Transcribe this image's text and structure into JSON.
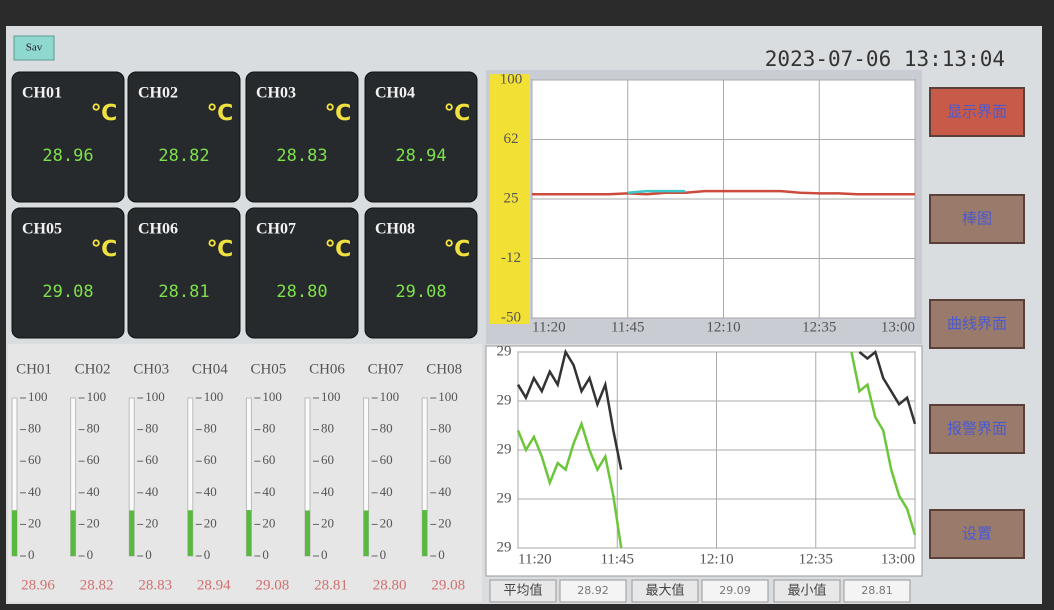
{
  "header": {
    "badge": "Sav",
    "datetime": "2023-07-06 13:13:04"
  },
  "channels": [
    {
      "name": "CH01",
      "unit": "℃",
      "value": "28.96"
    },
    {
      "name": "CH02",
      "unit": "℃",
      "value": "28.82"
    },
    {
      "name": "CH03",
      "unit": "℃",
      "value": "28.83"
    },
    {
      "name": "CH04",
      "unit": "℃",
      "value": "28.94"
    },
    {
      "name": "CH05",
      "unit": "℃",
      "value": "29.08"
    },
    {
      "name": "CH06",
      "unit": "℃",
      "value": "28.81"
    },
    {
      "name": "CH07",
      "unit": "℃",
      "value": "28.80"
    },
    {
      "name": "CH08",
      "unit": "℃",
      "value": "29.08"
    }
  ],
  "gauges": {
    "lim": [
      0,
      100
    ],
    "ticks": [
      100,
      80,
      60,
      40,
      20,
      0
    ]
  },
  "chart_data": [
    {
      "type": "line",
      "x": [
        "11:20",
        "11:25",
        "11:30",
        "11:35",
        "11:40",
        "11:45",
        "11:50",
        "11:55",
        "12:00",
        "12:05",
        "12:10",
        "12:15",
        "12:20",
        "12:25",
        "12:30",
        "12:35",
        "12:40",
        "12:45",
        "12:50",
        "12:55",
        "13:00"
      ],
      "series": [
        {
          "color": "#cc4b3c",
          "values": [
            28,
            28,
            28,
            28,
            28,
            28.5,
            28,
            29,
            29,
            30,
            30,
            30,
            30,
            30,
            29,
            28.5,
            28.5,
            28,
            28,
            28,
            28
          ]
        },
        {
          "color": "#3cc8c8",
          "values": [
            null,
            null,
            null,
            null,
            null,
            29,
            30,
            30,
            30,
            null,
            null,
            null,
            null,
            null,
            null,
            null,
            null,
            null,
            null,
            null,
            null
          ]
        }
      ],
      "xlim": [
        "11:20",
        "13:00"
      ],
      "xticks": [
        "11:20",
        "11:45",
        "12:10",
        "12:35",
        "13:00"
      ],
      "ylim": [
        -50,
        100
      ],
      "yticks": [
        100,
        {
          "value": 62.5,
          "label": "62"
        },
        25,
        {
          "value": -12.5,
          "label": "-12"
        },
        -50
      ],
      "grid": true
    },
    {
      "type": "line",
      "x": [
        "11:20",
        "11:22",
        "11:24",
        "11:26",
        "11:28",
        "11:30",
        "11:32",
        "11:34",
        "11:36",
        "11:38",
        "11:40",
        "11:42",
        "11:44",
        "11:46",
        "12:00",
        "12:44",
        "12:46",
        "12:48",
        "12:50",
        "12:52",
        "12:54",
        "12:56",
        "12:58",
        "13:00"
      ],
      "series": [
        {
          "color": "#333333",
          "values": [
            29.05,
            29.03,
            29.06,
            29.04,
            29.07,
            29.05,
            29.1,
            29.08,
            29.04,
            29.06,
            29.02,
            29.05,
            28.98,
            28.92,
            null,
            null,
            29.1,
            29.09,
            29.1,
            29.06,
            29.04,
            29.02,
            29.03,
            28.99
          ]
        },
        {
          "color": "#6cc63a",
          "values": [
            28.98,
            28.95,
            28.97,
            28.94,
            28.9,
            28.93,
            28.92,
            28.96,
            28.99,
            28.95,
            28.92,
            28.94,
            28.88,
            28.8,
            null,
            29.1,
            29.04,
            29.05,
            29.0,
            28.98,
            28.92,
            28.88,
            28.86,
            28.82
          ]
        }
      ],
      "xlim": [
        "11:20",
        "13:00"
      ],
      "xticks": [
        "11:20",
        "11:45",
        "12:10",
        "12:35",
        "13:00"
      ],
      "ylim": [
        28.8,
        29.1
      ],
      "yticks": [
        {
          "value": 29.1,
          "label": "29"
        },
        {
          "value": 29.025,
          "label": "29"
        },
        {
          "value": 28.95,
          "label": "29"
        },
        {
          "value": 28.875,
          "label": "29"
        },
        {
          "value": 28.8,
          "label": "29"
        }
      ],
      "grid": true
    }
  ],
  "stats": [
    {
      "label": "平均值",
      "value": "28.92"
    },
    {
      "label": "最大值",
      "value": "29.09"
    },
    {
      "label": "最小值",
      "value": "28.81"
    }
  ],
  "buttons": [
    "显示界面",
    "棒图",
    "曲线界面",
    "报警界面",
    "设置"
  ]
}
